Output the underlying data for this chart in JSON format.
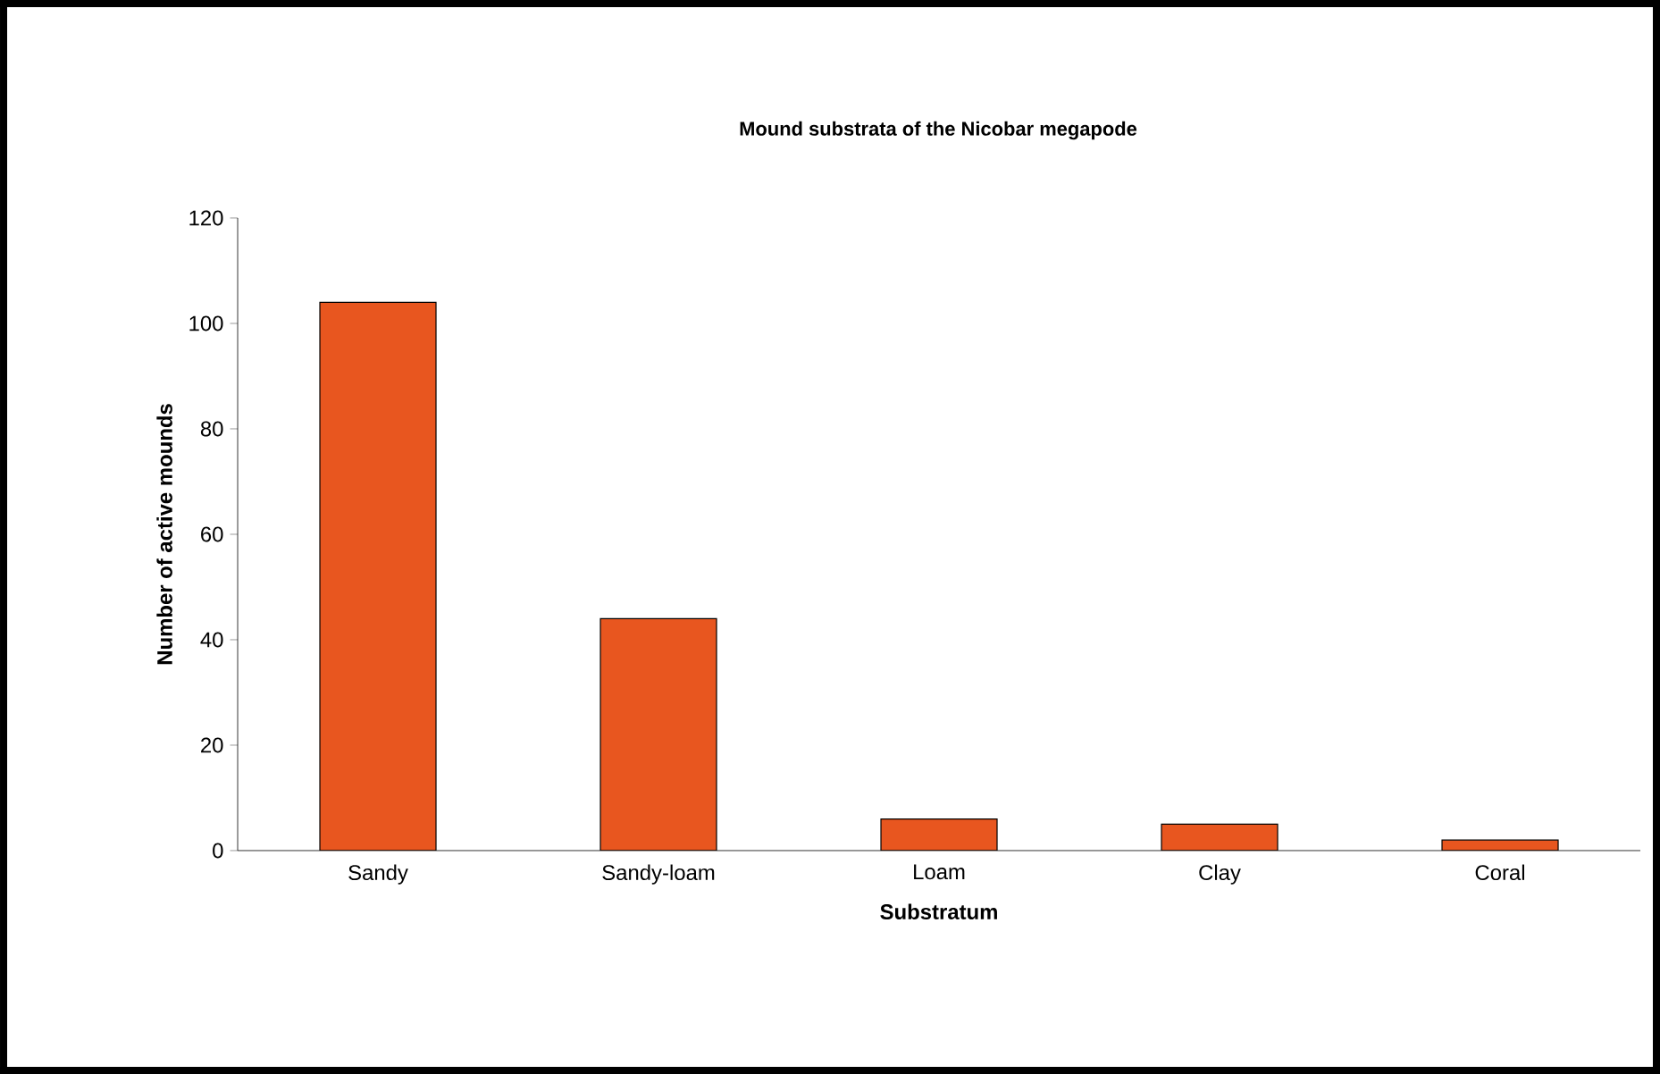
{
  "chart_data": {
    "type": "bar",
    "title": "Mound substrata of the Nicobar megapode",
    "xlabel": "Substratum",
    "ylabel": "Number of active mounds",
    "categories": [
      "Sandy",
      "Sandy-loam",
      "Loam",
      "Clay",
      "Coral"
    ],
    "values": [
      104,
      44,
      6,
      5,
      2
    ],
    "color": "#e8561f",
    "ylim": [
      0,
      120
    ],
    "yticks": [
      0,
      20,
      40,
      60,
      80,
      100,
      120
    ],
    "grid": false
  }
}
